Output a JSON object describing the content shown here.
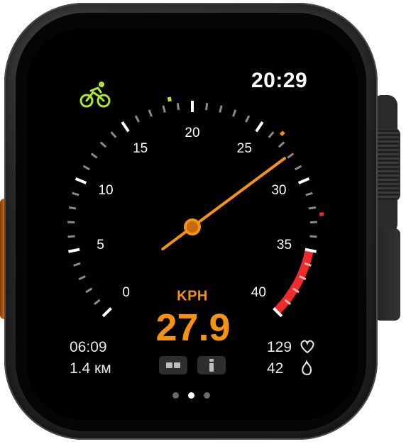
{
  "status": {
    "time": "20:29"
  },
  "activity": {
    "icon": "cycling-icon",
    "color": "#aee82a"
  },
  "gauge": {
    "min": 0,
    "max": 40,
    "labels": [
      "0",
      "5",
      "10",
      "15",
      "20",
      "25",
      "30",
      "35",
      "40"
    ],
    "current": 27.9,
    "target_marker": 18.5,
    "avg_marker": 26.5,
    "max_marker": 32.5,
    "danger_zone_start": 35,
    "needle_color": "#f5930f",
    "zone_color": "#ee2a2a"
  },
  "readout": {
    "unit": "KPH",
    "value": "27.9"
  },
  "stats_left": {
    "duration": "06:09",
    "distance": "1.4 км"
  },
  "stats_right": {
    "heart_rate": "129",
    "calories": "42"
  },
  "icons": {
    "heart": "heart-icon",
    "flame": "flame-icon",
    "view_toggle": "split-view-icon",
    "info": "info-icon"
  },
  "pager": {
    "pages": 3,
    "active": 1
  }
}
